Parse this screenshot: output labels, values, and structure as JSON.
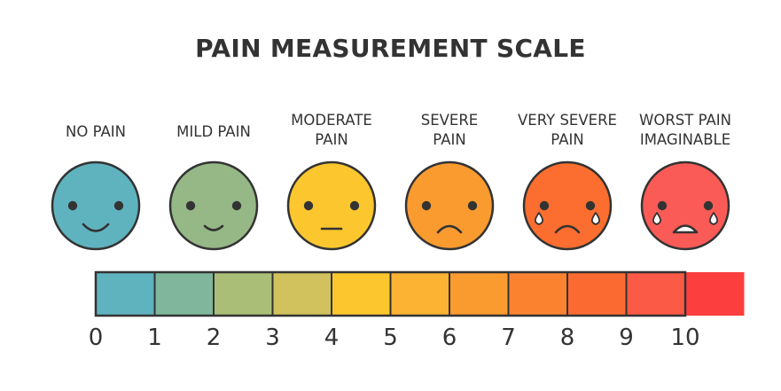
{
  "title": "PAIN MEASUREMENT SCALE",
  "levels": [
    {
      "label_lines": [
        "NO PAIN"
      ],
      "color": "#5FB3BF",
      "expression": "big-smile",
      "tears": false
    },
    {
      "label_lines": [
        "MILD PAIN"
      ],
      "color": "#96B886",
      "expression": "small-smile",
      "tears": false
    },
    {
      "label_lines": [
        "MODERATE",
        "PAIN"
      ],
      "color": "#FCC72E",
      "expression": "neutral",
      "tears": false
    },
    {
      "label_lines": [
        "SEVERE",
        "PAIN"
      ],
      "color": "#FA9B30",
      "expression": "frown",
      "tears": false
    },
    {
      "label_lines": [
        "VERY SEVERE",
        "PAIN"
      ],
      "color": "#FB6E2F",
      "expression": "frown",
      "tears": true
    },
    {
      "label_lines": [
        "WORST PAIN",
        "IMAGINABLE"
      ],
      "color": "#FB5B57",
      "expression": "open-mouth-cry",
      "tears": true
    }
  ],
  "scale": {
    "ticks": [
      "0",
      "1",
      "2",
      "3",
      "4",
      "5",
      "6",
      "7",
      "8",
      "9",
      "10"
    ],
    "segment_colors": [
      "#5FB3BF",
      "#80B69C",
      "#ABBE77",
      "#D1C25E",
      "#FCC72E",
      "#FCB232",
      "#FA9B30",
      "#FB8330",
      "#FB6B31",
      "#FB5A46",
      "#FC3E3E"
    ],
    "outline_color": "#333333"
  }
}
